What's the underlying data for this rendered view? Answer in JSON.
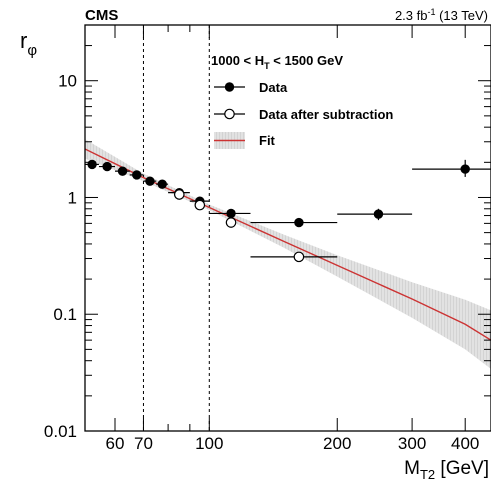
{
  "chart_data": {
    "type": "scatter",
    "experiment": "CMS",
    "lumi_label": "2.3 fb",
    "lumi_sup": "-1",
    "energy_label": " (13 TeV)",
    "region_label_pre": "1000 < H",
    "region_label_sub": "T",
    "region_label_post": " < 1500 GeV",
    "ylabel_main": "r",
    "ylabel_sub": "φ",
    "xlabel_main": "M",
    "xlabel_sub": "T2",
    "xlabel_unit": " [GeV]",
    "xscale": "log",
    "yscale": "log",
    "xlim": [
      51,
      460
    ],
    "ylim": [
      0.01,
      30
    ],
    "x_tick_labels": [
      {
        "value": 60,
        "label": "60"
      },
      {
        "value": 70,
        "label": "70"
      },
      {
        "value": 100,
        "label": "100"
      },
      {
        "value": 200,
        "label": "200"
      },
      {
        "value": 300,
        "label": "300"
      },
      {
        "value": 400,
        "label": "400"
      }
    ],
    "y_tick_labels": [
      {
        "value": 0.01,
        "label": "0.01"
      },
      {
        "value": 0.1,
        "label": "0.1"
      },
      {
        "value": 1,
        "label": "1"
      },
      {
        "value": 10,
        "label": "10"
      }
    ],
    "vertical_dashed_lines": [
      70,
      100
    ],
    "legend": {
      "position": "top-right",
      "entries": [
        {
          "label": "Data",
          "kind": "filled-marker"
        },
        {
          "label": "Data after subtraction",
          "kind": "open-marker"
        },
        {
          "label": "Fit",
          "kind": "band-line"
        }
      ]
    },
    "colors": {
      "fit_line": "#cc3333",
      "fit_band": "#d9d9d9",
      "markers": "#000000"
    },
    "series": [
      {
        "name": "Data",
        "marker": "filled-circle",
        "points": [
          {
            "x": 53,
            "xlo": 51,
            "xhi": 55,
            "y": 1.92
          },
          {
            "x": 57.5,
            "xlo": 55,
            "xhi": 60,
            "y": 1.84
          },
          {
            "x": 62.5,
            "xlo": 60,
            "xhi": 65,
            "y": 1.68
          },
          {
            "x": 67.5,
            "xlo": 65,
            "xhi": 70,
            "y": 1.56
          },
          {
            "x": 72.5,
            "xlo": 70,
            "xhi": 75,
            "y": 1.38
          },
          {
            "x": 77.5,
            "xlo": 75,
            "xhi": 80,
            "y": 1.3
          },
          {
            "x": 85,
            "xlo": 80,
            "xhi": 90,
            "y": 1.1
          },
          {
            "x": 95,
            "xlo": 90,
            "xhi": 100,
            "y": 0.93
          },
          {
            "x": 112.5,
            "xlo": 100,
            "xhi": 125,
            "y": 0.73
          },
          {
            "x": 162.5,
            "xlo": 125,
            "xhi": 200,
            "y": 0.61
          },
          {
            "x": 250,
            "xlo": 200,
            "xhi": 300,
            "y": 0.72,
            "ylo": 0.64,
            "yhi": 0.8
          },
          {
            "x": 400,
            "xlo": 300,
            "xhi": 500,
            "y": 1.75,
            "ylo": 1.5,
            "yhi": 2.1
          }
        ]
      },
      {
        "name": "Data after subtraction",
        "marker": "open-circle",
        "points": [
          {
            "x": 85,
            "y": 1.06
          },
          {
            "x": 95,
            "y": 0.86
          },
          {
            "x": 112.5,
            "y": 0.61
          },
          {
            "x": 162.5,
            "y": 0.31,
            "xlo": 125,
            "xhi": 200
          }
        ]
      }
    ],
    "fit": {
      "name": "Fit",
      "x": [
        51,
        70,
        100,
        150,
        200,
        300,
        400,
        460
      ],
      "y": [
        2.6,
        1.48,
        0.82,
        0.42,
        0.262,
        0.135,
        0.082,
        0.06
      ],
      "band_lo": [
        2.15,
        1.38,
        0.78,
        0.37,
        0.21,
        0.093,
        0.05,
        0.034
      ],
      "band_hi": [
        3.15,
        1.6,
        0.87,
        0.48,
        0.32,
        0.188,
        0.133,
        0.108
      ]
    }
  }
}
